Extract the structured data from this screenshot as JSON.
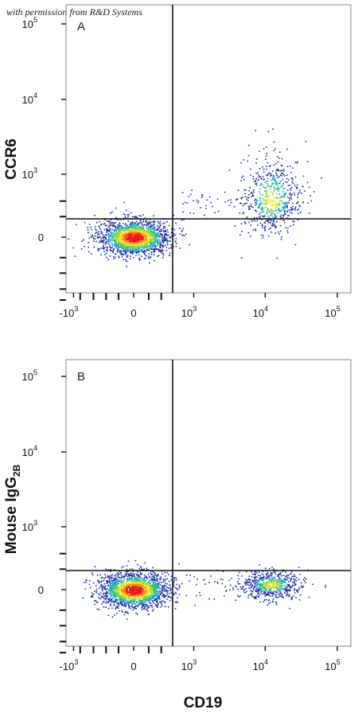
{
  "credit": "with permission from R&D Systems",
  "colors": {
    "density_low": "#1f2fa6",
    "density_mid": "#2fc07a",
    "density_high_mid": "#f2e11c",
    "density_high": "#e81c16",
    "quadrant_line": "#111111"
  },
  "chart_data": [
    {
      "type": "scatter",
      "subtype": "flow-cytometry-density-dot-plot",
      "panel": "A",
      "ylabel": "CCR6",
      "xlabel": "",
      "x_ticks": [
        "-10",
        "0",
        "10",
        "10",
        "10"
      ],
      "x_tick_exponents": [
        "3",
        "",
        "3",
        "4",
        "5"
      ],
      "y_ticks": [
        "0",
        "10",
        "10",
        "10"
      ],
      "y_tick_exponents": [
        "",
        "3",
        "4",
        "5"
      ],
      "quadrant_gate": {
        "x": 600,
        "y": 300
      },
      "clusters": [
        {
          "center": {
            "x": 0,
            "y": 0
          },
          "x_range": [
            -900,
            500
          ],
          "y_range": [
            -300,
            300
          ],
          "density": "high"
        },
        {
          "center": {
            "x": 12000,
            "y": 400
          },
          "x_range": [
            2000,
            40000
          ],
          "y_range": [
            100,
            1500
          ],
          "density": "medium"
        }
      ]
    },
    {
      "type": "scatter",
      "subtype": "flow-cytometry-density-dot-plot",
      "panel": "B",
      "ylabel": "Mouse IgG",
      "ylabel_subscript": "2B",
      "xlabel": "CD19",
      "x_ticks": [
        "-10",
        "0",
        "10",
        "10",
        "10"
      ],
      "x_tick_exponents": [
        "3",
        "",
        "3",
        "4",
        "5"
      ],
      "y_ticks": [
        "0",
        "10",
        "10",
        "10"
      ],
      "y_tick_exponents": [
        "",
        "3",
        "4",
        "5"
      ],
      "quadrant_gate": {
        "x": 600,
        "y": 300
      },
      "clusters": [
        {
          "center": {
            "x": 0,
            "y": 0
          },
          "x_range": [
            -900,
            500
          ],
          "y_range": [
            -300,
            300
          ],
          "density": "high"
        },
        {
          "center": {
            "x": 12000,
            "y": 50
          },
          "x_range": [
            2000,
            40000
          ],
          "y_range": [
            -200,
            300
          ],
          "density": "medium"
        }
      ]
    }
  ]
}
